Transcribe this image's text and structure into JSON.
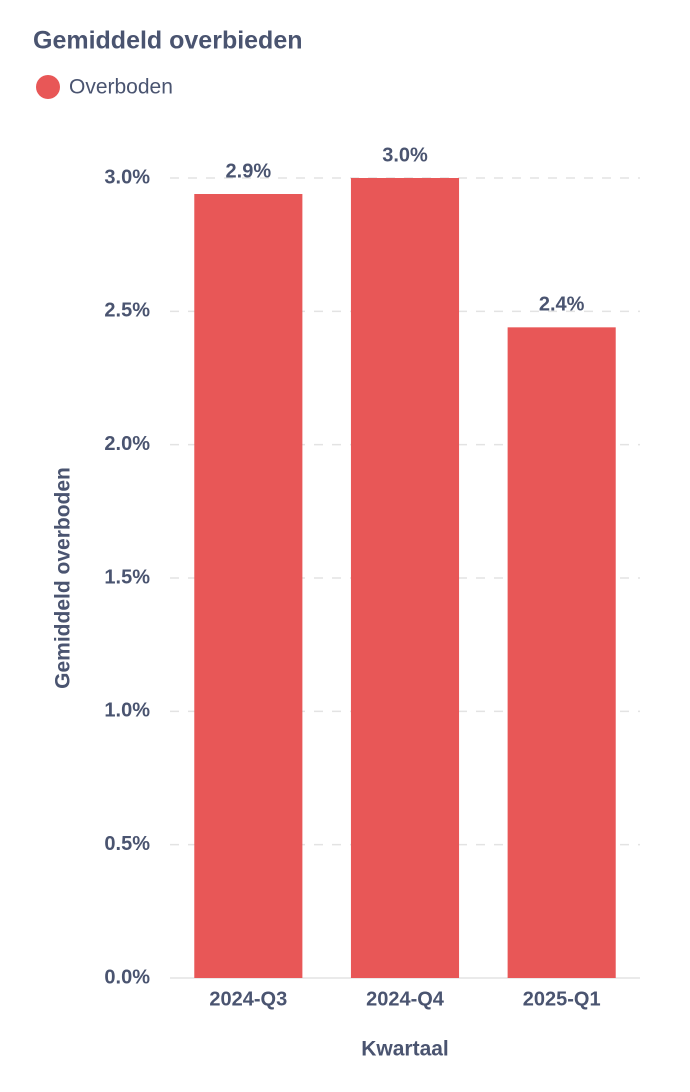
{
  "chart_data": {
    "type": "bar",
    "title": "Gemiddeld overbieden",
    "y_label": "Gemiddeld overboden",
    "x_label": "Kwartaal",
    "categories": [
      "2024-Q3",
      "2024-Q4",
      "2025-Q1"
    ],
    "series": [
      {
        "name": "Overboden",
        "color": "#e85757",
        "values": [
          2.94,
          3.0,
          2.44
        ],
        "value_labels": [
          "2.9%",
          "3.0%",
          "2.4%"
        ]
      }
    ],
    "ylim": [
      0,
      3.0
    ],
    "yticks": [
      {
        "value": 0,
        "label": "0.0%"
      },
      {
        "value": 0.5,
        "label": "0.5%"
      },
      {
        "value": 1.0,
        "label": "1.0%"
      },
      {
        "value": 1.5,
        "label": "1.5%"
      },
      {
        "value": 2.0,
        "label": "2.0%"
      },
      {
        "value": 2.5,
        "label": "2.5%"
      },
      {
        "value": 3.0,
        "label": "3.0%"
      }
    ],
    "grid": true
  }
}
